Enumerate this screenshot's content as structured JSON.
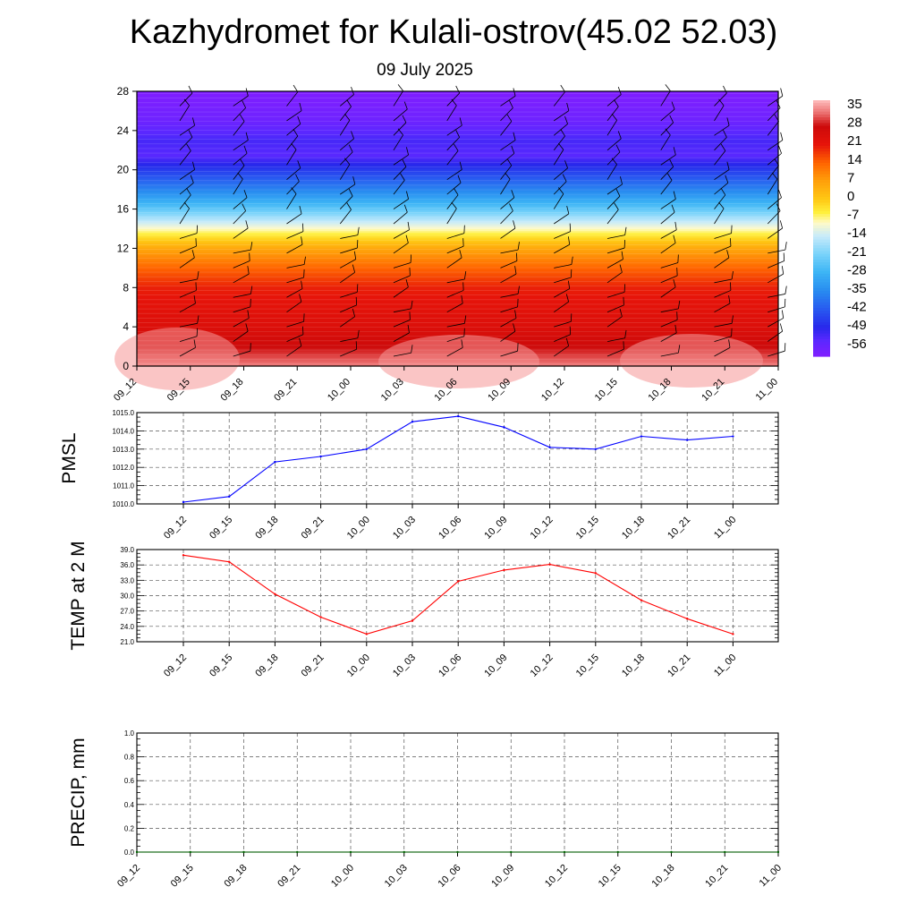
{
  "header": {
    "title": "Kazhydromet for Kulali-ostrov(45.02 52.03)",
    "subtitle": "09 July 2025"
  },
  "times": [
    "09_12",
    "09_15",
    "09_18",
    "09_21",
    "10_00",
    "10_03",
    "10_06",
    "10_09",
    "10_12",
    "10_15",
    "10_18",
    "10_21",
    "11_00"
  ],
  "chart_data": [
    {
      "type": "heatmap",
      "name": "temperature-height-section",
      "ylim": [
        0,
        28
      ],
      "yticks": [
        0,
        4,
        8,
        12,
        16,
        20,
        24,
        28
      ],
      "x": [
        "09_12",
        "09_15",
        "09_18",
        "09_21",
        "10_00",
        "10_03",
        "10_06",
        "10_09",
        "10_12",
        "10_15",
        "10_18",
        "10_21",
        "11_00"
      ],
      "colorbar": {
        "labels": [
          "35",
          "28",
          "21",
          "14",
          "7",
          "0",
          "-7",
          "-14",
          "-21",
          "-28",
          "-35",
          "-42",
          "-49",
          "-56"
        ],
        "range": [
          -60,
          38
        ]
      },
      "profile": {
        "heights": [
          0,
          2,
          4,
          6,
          8,
          10,
          12,
          13.5,
          15,
          16.5,
          18,
          20,
          21.5,
          23,
          25,
          28
        ],
        "values": [
          34,
          28,
          24,
          22,
          20,
          14,
          6,
          -5,
          -16,
          -27,
          -36,
          -46,
          -54,
          -52,
          -57,
          -60
        ]
      },
      "wind_barbs": true
    },
    {
      "type": "line",
      "name": "pmsl",
      "ylabel": "PMSL",
      "ylim": [
        1010.0,
        1015.0
      ],
      "yticks": [
        "1010.0",
        "1011.0",
        "1012.0",
        "1013.0",
        "1014.0",
        "1015.0"
      ],
      "x": [
        "09_12",
        "09_15",
        "09_18",
        "09_21",
        "10_00",
        "10_03",
        "10_06",
        "10_09",
        "10_12",
        "10_15",
        "10_18",
        "10_21",
        "11_00"
      ],
      "values": [
        1010.1,
        1010.4,
        1012.3,
        1012.6,
        1013.0,
        1014.5,
        1014.8,
        1014.2,
        1013.1,
        1013.0,
        1013.7,
        1013.5,
        1013.7
      ],
      "color": "#0000ff",
      "grid": true
    },
    {
      "type": "line",
      "name": "temp-2m",
      "ylabel": "TEMP at 2 M",
      "ylim": [
        21.0,
        39.0
      ],
      "yticks": [
        "21.0",
        "24.0",
        "27.0",
        "30.0",
        "33.0",
        "36.0",
        "39.0"
      ],
      "x": [
        "09_12",
        "09_15",
        "09_18",
        "09_21",
        "10_00",
        "10_03",
        "10_06",
        "10_09",
        "10_12",
        "10_15",
        "10_18",
        "10_21",
        "11_00"
      ],
      "values": [
        37.9,
        36.6,
        30.3,
        25.8,
        22.5,
        25.1,
        32.8,
        35.0,
        36.1,
        34.4,
        29.1,
        25.5,
        22.5
      ],
      "color": "#ff0000",
      "grid": true
    },
    {
      "type": "line",
      "name": "precip",
      "ylabel": "PRECIP, mm",
      "ylim": [
        0.0,
        1.0
      ],
      "yticks": [
        "0.0",
        "0.2",
        "0.4",
        "0.6",
        "0.8",
        "1.0"
      ],
      "x": [
        "09_12",
        "09_15",
        "09_18",
        "09_21",
        "10_00",
        "10_03",
        "10_06",
        "10_09",
        "10_12",
        "10_15",
        "10_18",
        "10_21",
        "11_00"
      ],
      "values": [
        0,
        0,
        0,
        0,
        0,
        0,
        0,
        0,
        0,
        0,
        0,
        0,
        0
      ],
      "color": "#006400",
      "grid": true
    }
  ]
}
